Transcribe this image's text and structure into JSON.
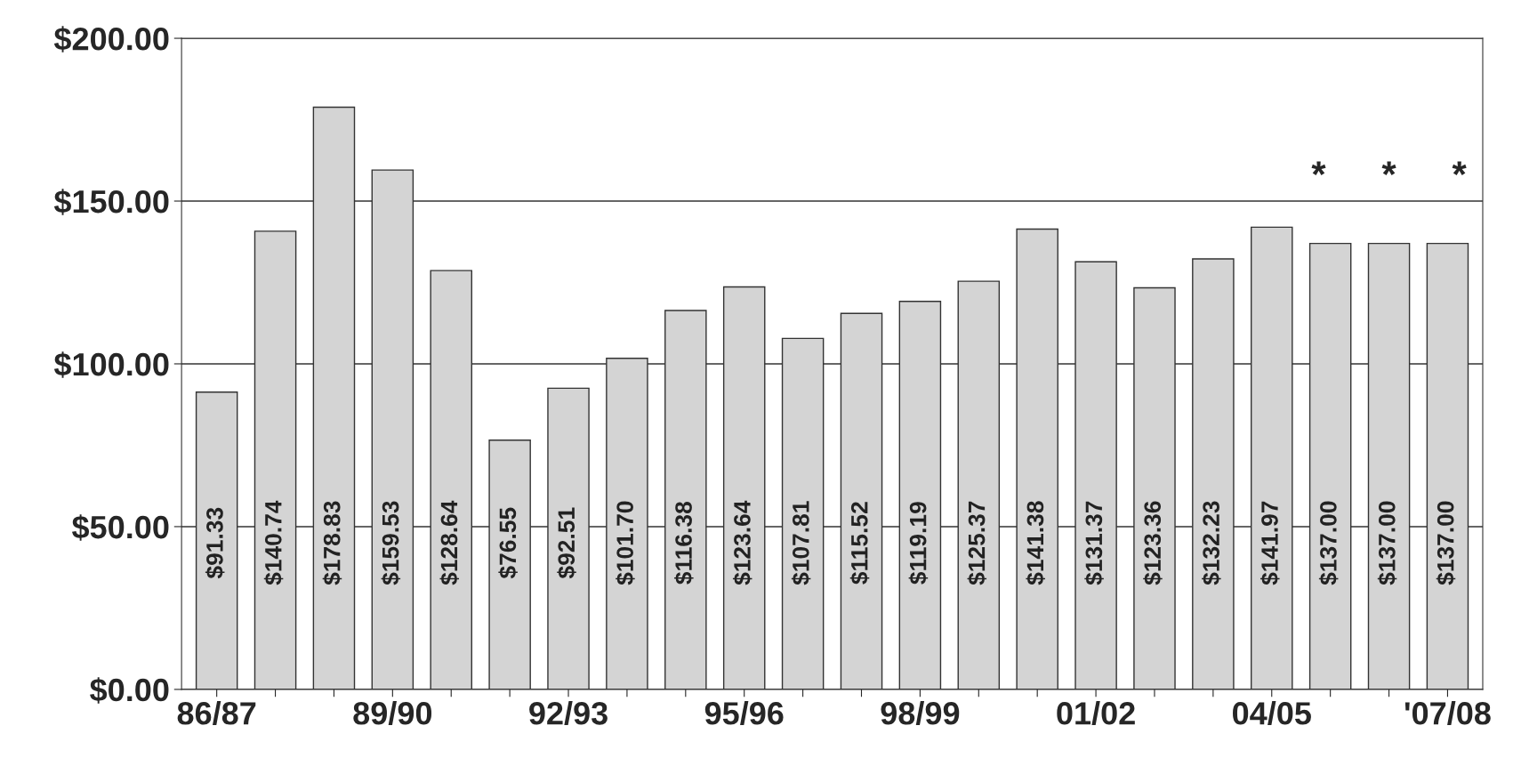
{
  "chart_data": {
    "type": "bar",
    "categories": [
      "86/87",
      null,
      null,
      "89/90",
      null,
      null,
      "92/93",
      null,
      null,
      "95/96",
      null,
      null,
      "98/99",
      null,
      null,
      "01/02",
      null,
      null,
      "04/05",
      null,
      null,
      "'07/08"
    ],
    "values": [
      91.33,
      140.74,
      178.83,
      159.53,
      128.64,
      76.55,
      92.51,
      101.7,
      116.38,
      123.64,
      107.81,
      115.52,
      119.19,
      125.37,
      141.38,
      131.37,
      123.36,
      132.23,
      141.97,
      137.0,
      137.0,
      137.0
    ],
    "value_labels": [
      "$91.33",
      "$140.74",
      "$178.83",
      "$159.53",
      "$128.64",
      "$76.55",
      "$92.51",
      "$101.70",
      "$116.38",
      "$123.64",
      "$107.81",
      "$115.52",
      "$119.19",
      "$125.37",
      "$141.38",
      "$131.37",
      "$123.36",
      "$132.23",
      "$141.97",
      "$137.00",
      "$137.00",
      "$137.00"
    ],
    "color": "#d4d4d4",
    "ylim": [
      0,
      200
    ],
    "yticks": [
      {
        "value": 0,
        "label": "$0.00"
      },
      {
        "value": 50,
        "label": "$50.00"
      },
      {
        "value": 100,
        "label": "$100.00"
      },
      {
        "value": 150,
        "label": "$150.00"
      },
      {
        "value": 200,
        "label": "$200.00"
      }
    ],
    "grid": "y",
    "annotations": [
      "*",
      "*",
      "*"
    ]
  }
}
